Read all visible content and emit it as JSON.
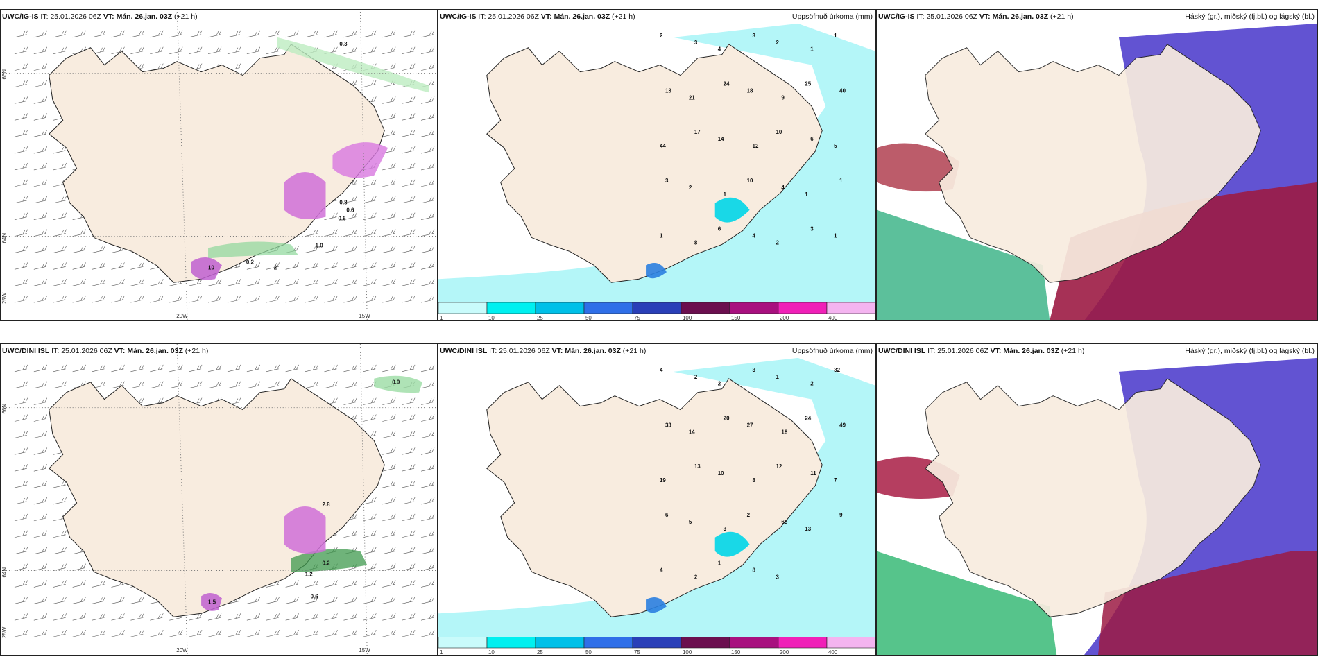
{
  "panels": [
    {
      "id": "p1",
      "model": "UWC/IG-IS",
      "it_label": "IT:",
      "it": "25.01.2026 06Z",
      "vt_label": "VT:",
      "vt": "Mán. 26.jan. 03Z",
      "lead": "(+21 h)",
      "right": "",
      "lat_labels": [
        "66N",
        "64N"
      ],
      "lon_labels": [
        "20W",
        "15W"
      ],
      "edge_labels": [
        "25W"
      ],
      "values": [
        "0.3",
        "0.8",
        "0.6",
        "0.6",
        "1.0",
        "0.2",
        "2",
        "10"
      ]
    },
    {
      "id": "p2",
      "model": "UWC/IG-IS",
      "it_label": "IT:",
      "it": "25.01.2026 06Z",
      "vt_label": "VT:",
      "vt": "Mán. 26.jan. 03Z",
      "lead": "(+21 h)",
      "right": "Uppsöfnuð úrkoma (mm)",
      "values": [
        "2",
        "3",
        "4",
        "3",
        "2",
        "1",
        "1",
        "13",
        "21",
        "24",
        "18",
        "9",
        "25",
        "40",
        "44",
        "17",
        "14",
        "12",
        "10",
        "6",
        "5",
        "3",
        "2",
        "1",
        "10",
        "4",
        "1",
        "1",
        "1",
        "8",
        "6",
        "4",
        "2",
        "3",
        "1"
      ]
    },
    {
      "id": "p3",
      "model": "UWC/IG-IS",
      "it_label": "IT:",
      "it": "25.01.2026 06Z",
      "vt_label": "VT:",
      "vt": "Mán. 26.jan. 03Z",
      "lead": "(+21 h)",
      "right": "Háský (gr.), miðský (fj.bl.) og lágský (bl.)",
      "values": []
    },
    {
      "id": "p4",
      "model": "UWC/DINI ISL",
      "it_label": "IT:",
      "it": "25.01.2026 06Z",
      "vt_label": "VT:",
      "vt": "Mán. 26.jan. 03Z",
      "lead": "(+21 h)",
      "right": "",
      "lat_labels": [
        "66N",
        "64N"
      ],
      "lon_labels": [
        "20W",
        "15W"
      ],
      "edge_labels": [
        "25W"
      ],
      "values": [
        "0.9",
        "2.8",
        "0.2",
        "0.6",
        "1.2",
        "1.5"
      ]
    },
    {
      "id": "p5",
      "model": "UWC/DINI ISL",
      "it_label": "IT:",
      "it": "25.01.2026 06Z",
      "vt_label": "VT:",
      "vt": "Mán. 26.jan. 03Z",
      "lead": "(+21 h)",
      "right": "Uppsöfnuð úrkoma (mm)",
      "values": [
        "4",
        "2",
        "2",
        "3",
        "1",
        "2",
        "32",
        "33",
        "14",
        "20",
        "27",
        "18",
        "24",
        "49",
        "19",
        "13",
        "10",
        "8",
        "12",
        "11",
        "7",
        "6",
        "5",
        "3",
        "2",
        "68",
        "13",
        "9",
        "4",
        "2",
        "1",
        "8",
        "3"
      ]
    },
    {
      "id": "p6",
      "model": "UWC/DINI ISL",
      "it_label": "IT:",
      "it": "25.01.2026 06Z",
      "vt_label": "VT:",
      "vt": "Mán. 26.jan. 03Z",
      "lead": "(+21 h)",
      "right": "Háský (gr.), miðský (fj.bl.) og lágský (bl.)",
      "values": []
    }
  ],
  "colorbar": {
    "ticks": [
      "1",
      "10",
      "25",
      "50",
      "75",
      "100",
      "150",
      "200",
      "400"
    ],
    "colors": [
      "#c9fbfb",
      "#00f0f0",
      "#00c0e8",
      "#2f6fe8",
      "#2a3fb8",
      "#6b0f4f",
      "#a8107f",
      "#f020b8",
      "#f4b4f0"
    ]
  },
  "colors": {
    "land": "#f8ecdf",
    "precip": "#b4f6f8",
    "wind_green": "#1f6f30",
    "snow": "#d040d0",
    "cloud_high": "#2cb56e",
    "cloud_mid": "#5a4ad0",
    "cloud_low": "#a81c44"
  }
}
